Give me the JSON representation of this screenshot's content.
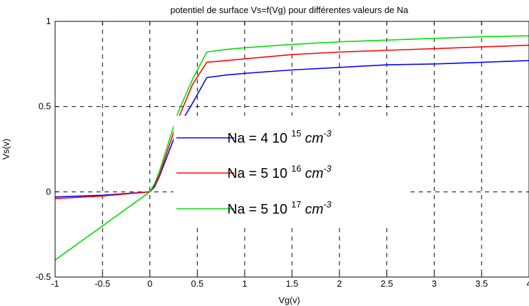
{
  "chart_data": {
    "type": "line",
    "title": "potentiel de surface Vs=f(Vg) pour différentes valeurs de Na",
    "xlabel": "Vg(v)",
    "ylabel": "Vs(v)",
    "xlim": [
      -1,
      4
    ],
    "ylim": [
      -0.5,
      1
    ],
    "grid": true,
    "legend_position": "center",
    "xticks": [
      "-1",
      "-0.5",
      "0",
      "0.5",
      "1",
      "1.5",
      "2",
      "2.5",
      "3",
      "3.5",
      "4"
    ],
    "yticks": [
      "-0.5",
      "0",
      "0.5",
      "1"
    ],
    "series": [
      {
        "name": "Na = 4 10 15 cm-3",
        "legend": {
          "prefix": "Na = 4 10",
          "exp": "15",
          "unit": "cm",
          "unit_exp": "-3"
        },
        "color": "#0000ff",
        "x": [
          -1,
          -0.5,
          0,
          0.05,
          0.1,
          0.3,
          0.45,
          0.6,
          0.8,
          1,
          1.5,
          2,
          2.5,
          3,
          3.5,
          4
        ],
        "y": [
          -0.03,
          -0.02,
          0.0,
          0.03,
          0.09,
          0.38,
          0.52,
          0.67,
          0.685,
          0.695,
          0.715,
          0.73,
          0.745,
          0.75,
          0.76,
          0.77
        ]
      },
      {
        "name": "Na = 5 10 16 cm-3",
        "legend": {
          "prefix": "Na = 5 10",
          "exp": "16",
          "unit": "cm",
          "unit_exp": "-3"
        },
        "color": "#ff0000",
        "x": [
          -1,
          -0.5,
          0,
          0.05,
          0.1,
          0.3,
          0.45,
          0.6,
          0.8,
          1,
          1.5,
          2,
          2.5,
          3,
          3.5,
          4
        ],
        "y": [
          -0.04,
          -0.025,
          0.0,
          0.04,
          0.1,
          0.43,
          0.63,
          0.76,
          0.77,
          0.78,
          0.805,
          0.82,
          0.83,
          0.84,
          0.85,
          0.86
        ]
      },
      {
        "name": "Na = 5 10 17 cm-3",
        "legend": {
          "prefix": "Na = 5 10",
          "exp": "17",
          "unit": "cm",
          "unit_exp": "-3"
        },
        "color": "#00dd00",
        "x": [
          -1,
          -0.5,
          0,
          0.05,
          0.1,
          0.3,
          0.45,
          0.6,
          0.8,
          1,
          1.5,
          2,
          2.5,
          3,
          3.5,
          4
        ],
        "y": [
          -0.4,
          -0.2,
          0.0,
          0.05,
          0.12,
          0.47,
          0.66,
          0.82,
          0.835,
          0.845,
          0.865,
          0.88,
          0.89,
          0.9,
          0.91,
          0.915
        ]
      }
    ]
  }
}
